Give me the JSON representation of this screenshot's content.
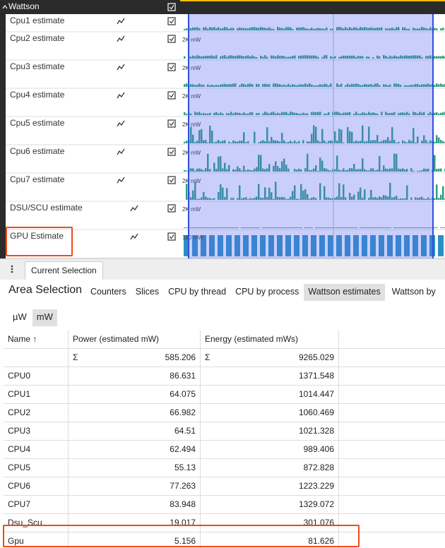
{
  "tracks": {
    "group": "Wattson",
    "rows": [
      {
        "name": "Cpu1 estimate"
      },
      {
        "name": "Cpu2 estimate",
        "scale": "2K mW"
      },
      {
        "name": "Cpu3 estimate",
        "scale": "2K mW"
      },
      {
        "name": "Cpu4 estimate",
        "scale": "2K mW"
      },
      {
        "name": "Cpu5 estimate",
        "scale": "2K mW"
      },
      {
        "name": "Cpu6 estimate",
        "scale": "2K mW"
      },
      {
        "name": "Cpu7 estimate",
        "scale": "2K mW"
      },
      {
        "name": "DSU/SCU estimate",
        "scale": "2K mW"
      },
      {
        "name": "GPU Estimate",
        "scale": "150 mW"
      }
    ]
  },
  "panel": {
    "tab": "Current Selection",
    "title": "Area Selection",
    "tabs": [
      "Counters",
      "Slices",
      "CPU by thread",
      "CPU by process",
      "Wattson estimates",
      "Wattson by"
    ],
    "units": [
      "µW",
      "mW"
    ],
    "table": {
      "headers": [
        "Name ↑",
        "Power (estimated mW)",
        "Energy (estimated mWs)"
      ],
      "sum_symbol": "Σ",
      "sum": [
        585.206,
        9265.029
      ],
      "rows": [
        [
          "CPU0",
          86.631,
          1371.548
        ],
        [
          "CPU1",
          64.075,
          1014.447
        ],
        [
          "CPU2",
          66.982,
          1060.469
        ],
        [
          "CPU3",
          64.51,
          1021.328
        ],
        [
          "CPU4",
          62.494,
          989.406
        ],
        [
          "CPU5",
          55.13,
          872.828
        ],
        [
          "CPU6",
          77.263,
          1223.229
        ],
        [
          "CPU7",
          83.948,
          1329.072
        ],
        [
          "Dsu_Scu",
          19.017,
          301.076
        ],
        [
          "Gpu",
          5.156,
          81.626
        ]
      ]
    }
  }
}
